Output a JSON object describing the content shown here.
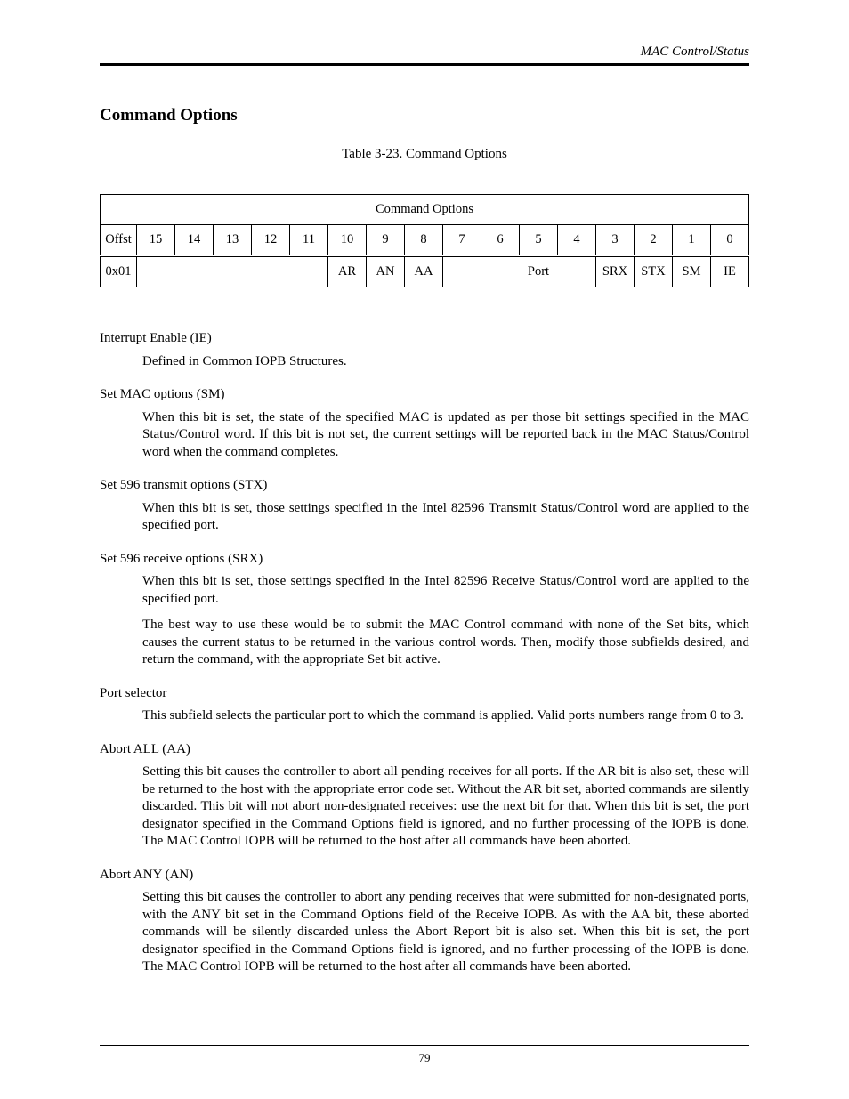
{
  "header": {
    "label": "MAC Control/Status"
  },
  "section": {
    "title": "Command Options"
  },
  "table": {
    "caption": "Table 3-23. Command Options",
    "title": "Command Options",
    "offst_label": "Offst",
    "bits": [
      "15",
      "14",
      "13",
      "12",
      "11",
      "10",
      "9",
      "8",
      "7",
      "6",
      "5",
      "4",
      "3",
      "2",
      "1",
      "0"
    ],
    "row": {
      "offset": "0x01",
      "blank": "",
      "AR": "AR",
      "AN": "AN",
      "AA": "AA",
      "gap": "",
      "Port": "Port",
      "SRX": "SRX",
      "STX": "STX",
      "SM": "SM",
      "IE": "IE"
    }
  },
  "defs": {
    "ie_t": "Interrupt Enable (IE)",
    "ie_d": "Defined in Common IOPB Structures.",
    "sm_t": "Set MAC options (SM)",
    "sm_d": "When this bit is set, the state of the specified MAC is updated as per those bit settings specified in the MAC Status/Control word.  If this bit is not set, the current settings will be reported back in the MAC Status/Control word when the command completes.",
    "stx_t": "Set 596 transmit options (STX)",
    "stx_d": "When this bit is set, those settings specified in the Intel 82596 Transmit Status/Control word are applied to the specified port.",
    "srx_t": "Set 596 receive options (SRX)",
    "srx_d1": "When this bit is set, those settings specified in the Intel 82596 Receive Status/Control word are applied to the specified port.",
    "srx_d2": "The best way to use these would be to submit the MAC Control command with none of the Set bits, which causes the current status to be returned in the various control words.  Then, modify those subfields desired, and return the command, with the appropriate Set bit active.",
    "port_t": "Port selector",
    "port_d": "This subfield selects the particular port to which the command is applied.  Valid ports numbers range from 0 to 3.",
    "aa_t": "Abort ALL (AA)",
    "aa_d": "Setting this bit causes the controller to abort all pending receives for all ports.  If the AR bit is also set, these will be returned to the host with the appropriate error code set.  Without the AR bit set, aborted commands are silently discarded.  This bit will not abort non-designated receives: use the next bit for that.  When this bit is set, the port designator specified in the Command Options field is ignored, and no further processing of the IOPB is done. The MAC Control IOPB will be returned  to the host after all commands have been aborted.",
    "an_t": "Abort ANY (AN)",
    "an_d": "Setting this bit causes the controller to abort any pending receives that were submitted for non-designated ports, with the ANY bit set in the Command Options field of the Receive IOPB.  As with the AA bit, these aborted commands will be silently discarded unless the Abort Report bit is also set.  When this bit is set, the port designator specified in the Command Options field is ignored, and no further processing of the IOPB is done.  The MAC Control IOPB will be returned to the host after all commands have been aborted."
  },
  "footer": {
    "page": "79"
  }
}
